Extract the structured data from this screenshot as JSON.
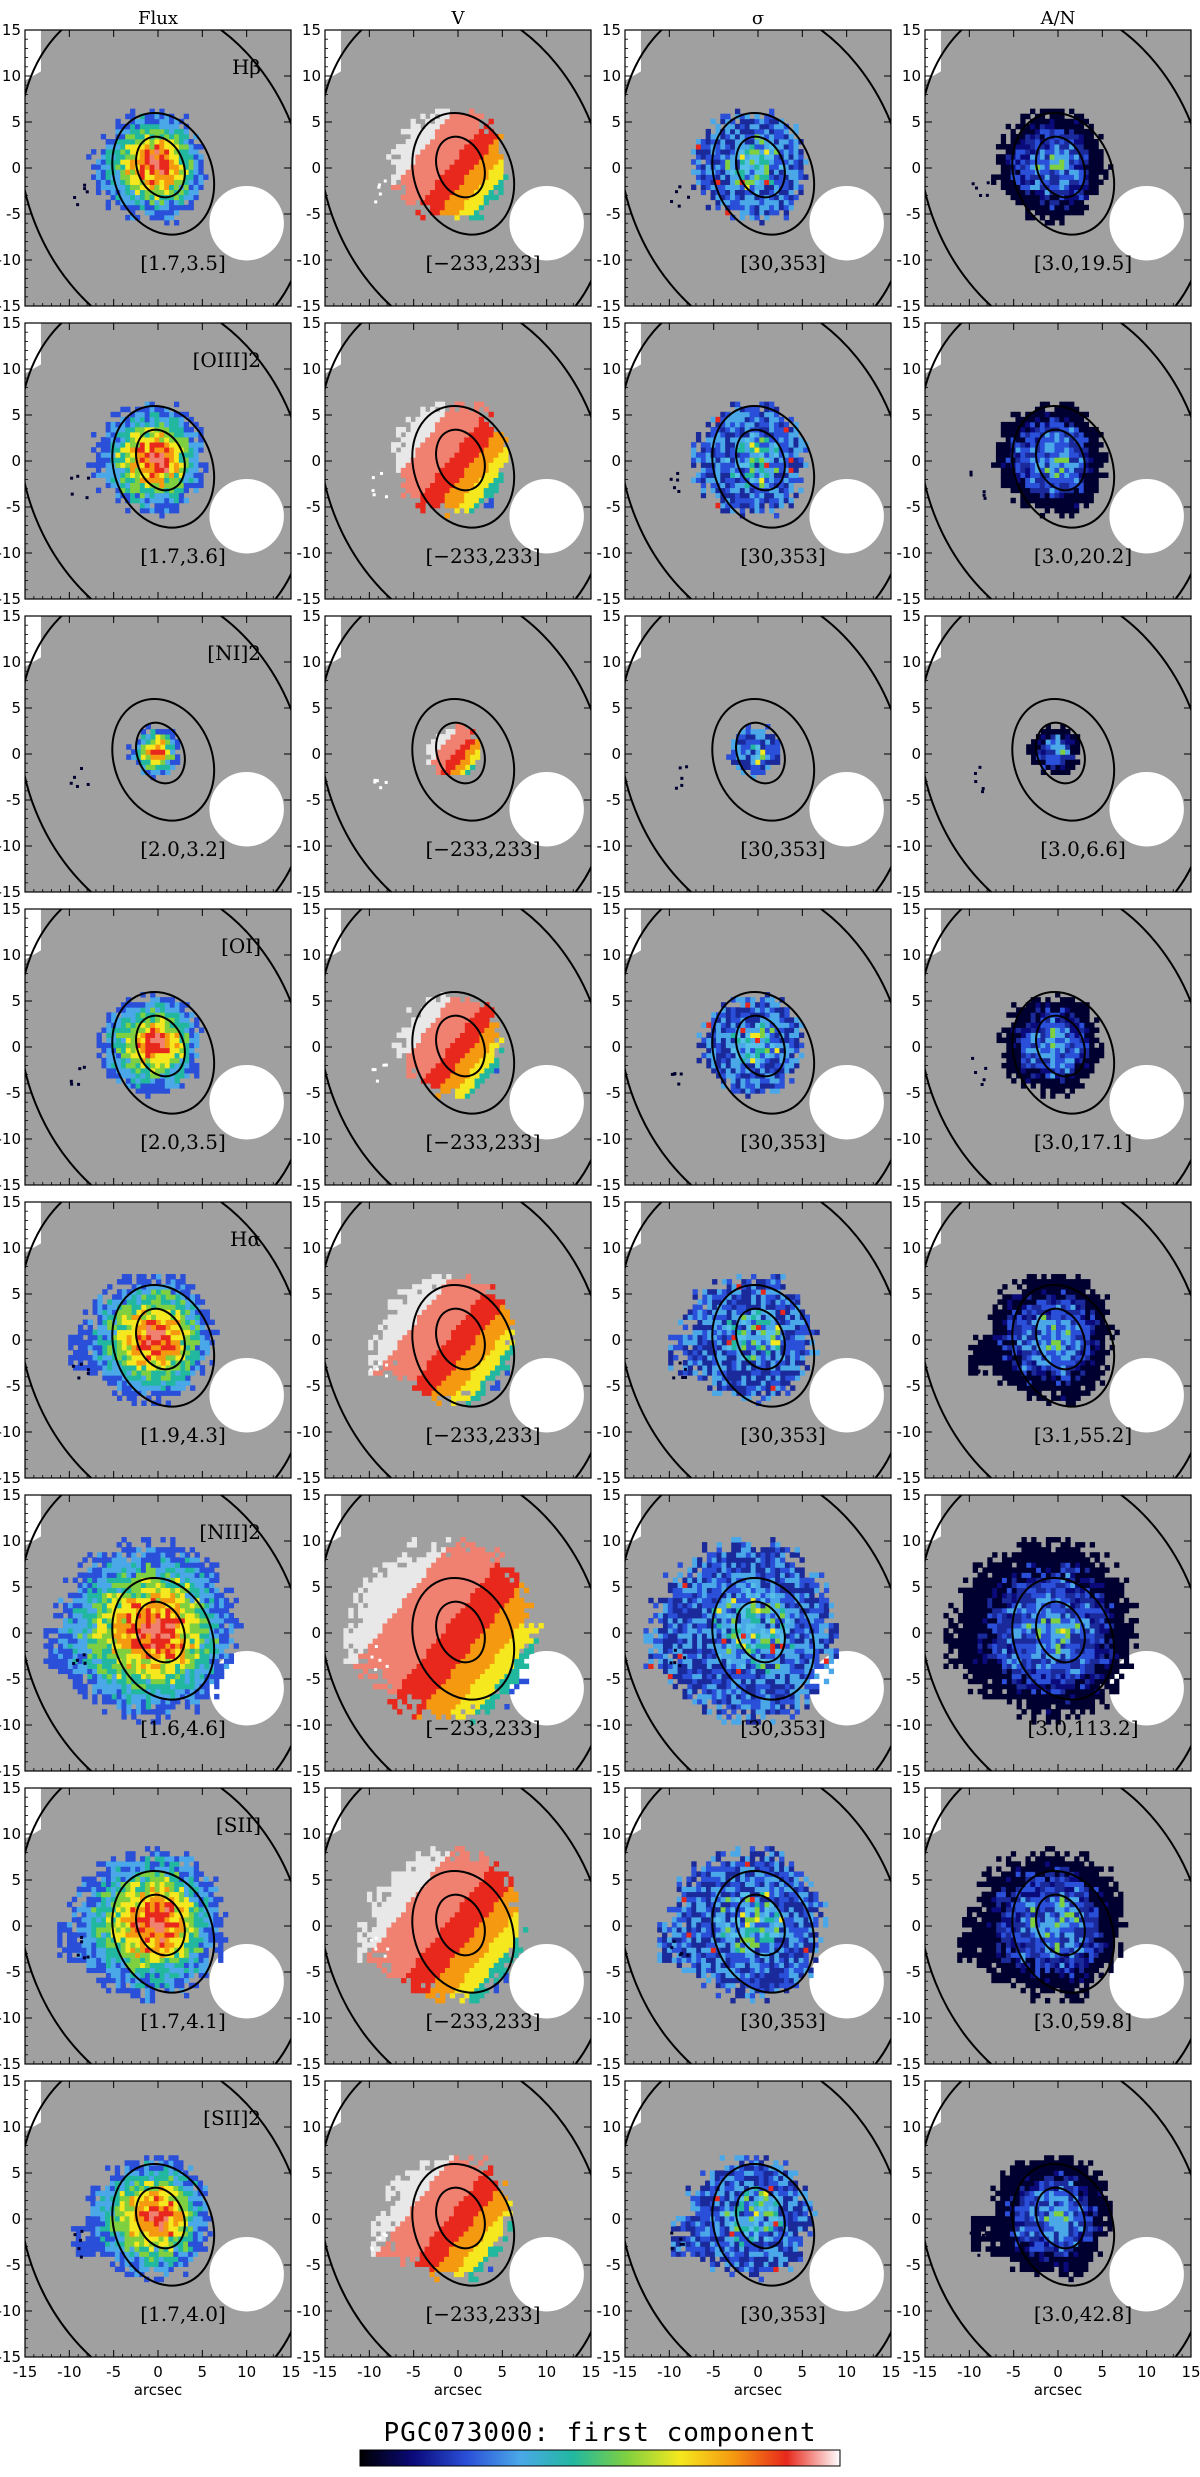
{
  "chart_data": {
    "type": "heatmap",
    "title": "PGC073000: first component",
    "column_headers": [
      "Flux",
      "V",
      "σ",
      "A/N"
    ],
    "row_labels": [
      "Hβ",
      "[OIII]2",
      "[NI]2",
      "[OI]",
      "Hα",
      "[NII]2",
      "[SII]",
      "[SII]2"
    ],
    "xlabel": "arcsec",
    "xlim": [
      -15,
      15
    ],
    "ylim": [
      -15,
      15
    ],
    "ticks": [
      -15,
      -10,
      -5,
      0,
      5,
      10,
      15
    ],
    "ranges": [
      [
        "[1.7,3.5]",
        "[−233,233]",
        "[30,353]",
        "[3.0,19.5]"
      ],
      [
        "[1.7,3.6]",
        "[−233,233]",
        "[30,353]",
        "[3.0,20.2]"
      ],
      [
        "[2.0,3.2]",
        "[−233,233]",
        "[30,353]",
        "[3.0,6.6]"
      ],
      [
        "[2.0,3.5]",
        "[−233,233]",
        "[30,353]",
        "[3.0,17.1]"
      ],
      [
        "[1.9,4.3]",
        "[−233,233]",
        "[30,353]",
        "[3.1,55.2]"
      ],
      [
        "[1.6,4.6]",
        "[−233,233]",
        "[30,353]",
        "[3.0,113.2]"
      ],
      [
        "[1.7,4.1]",
        "[−233,233]",
        "[30,353]",
        "[3.0,59.8]"
      ],
      [
        "[1.7,4.0]",
        "[−233,233]",
        "[30,353]",
        "[3.0,42.8]"
      ]
    ],
    "row_extent": [
      1.0,
      1.0,
      0.45,
      0.9,
      1.15,
      1.6,
      1.35,
      1.1
    ],
    "contours_arcsec": [
      {
        "rx": 2.6,
        "ry": 3.4
      },
      {
        "rx": 5.5,
        "ry": 6.8
      },
      {
        "rx": 15.5,
        "ry": 19.5
      }
    ],
    "colorbar": [
      "#000000",
      "#0a0a7a",
      "#2a4fd8",
      "#4aa8e8",
      "#22b8a0",
      "#7fd040",
      "#f5e81e",
      "#f59a10",
      "#e8281c",
      "#ffffff"
    ]
  }
}
